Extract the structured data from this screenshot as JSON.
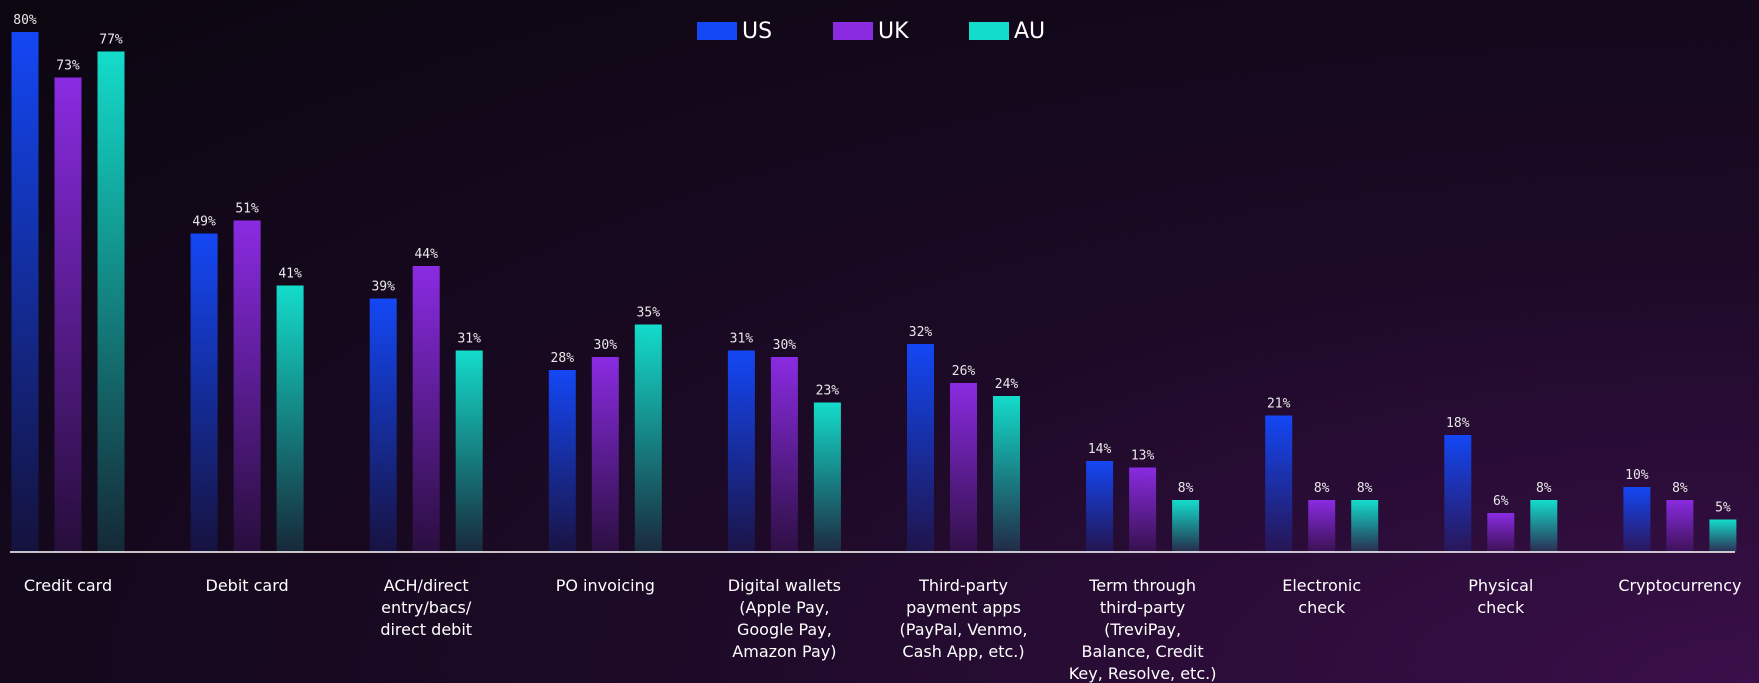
{
  "chart_data": {
    "type": "bar",
    "categories": [
      "Credit card",
      "Debit card",
      "ACH/direct\nentry/bacs/\ndirect debit",
      "PO invoicing",
      "Digital wallets\n(Apple Pay,\nGoogle Pay,\nAmazon Pay)",
      "Third-party\npayment apps\n(PayPal, Venmo,\nCash App, etc.)",
      "Term through\nthird-party\n(TreviPay,\nBalance, Credit\nKey, Resolve, etc.)",
      "Electronic\ncheck",
      "Physical\ncheck",
      "Cryptocurrency"
    ],
    "series": [
      {
        "name": "US",
        "color": "#1447f5",
        "values": [
          80,
          49,
          39,
          28,
          31,
          32,
          14,
          21,
          18,
          10
        ],
        "value_labels": [
          "80%",
          "49%",
          "39%",
          "28%",
          "31%",
          "32%",
          "14%",
          "21%",
          "18%",
          "10%"
        ]
      },
      {
        "name": "UK",
        "color": "#8a2be2",
        "values": [
          73,
          51,
          44,
          30,
          30,
          26,
          13,
          8,
          6,
          8
        ],
        "value_labels": [
          "73%",
          "51%",
          "44%",
          "30%",
          "30%",
          "26%",
          "13%",
          "8%",
          "6%",
          "8%"
        ]
      },
      {
        "name": "AU",
        "color": "#14dccb",
        "values": [
          77,
          41,
          31,
          35,
          23,
          24,
          8,
          8,
          8,
          5
        ],
        "value_labels": [
          "77%",
          "41%",
          "31%",
          "35%",
          "23%",
          "24%",
          "8%",
          "8%",
          "8%",
          "5%"
        ]
      }
    ],
    "legend": "top"
  }
}
